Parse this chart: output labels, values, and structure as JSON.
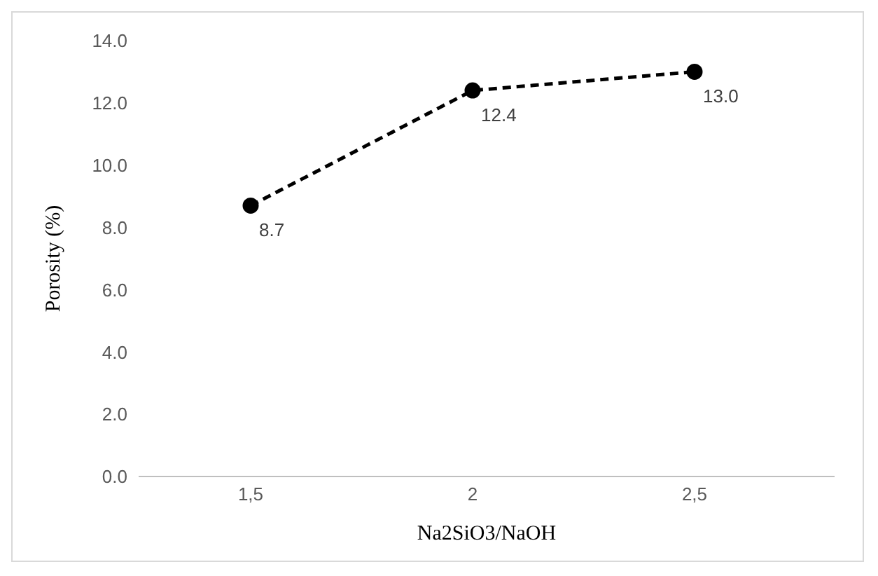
{
  "chart_data": {
    "type": "line",
    "xlabel": "Na2SiO3/NaOH",
    "ylabel": "Porosity (%)",
    "categories": [
      "1,5",
      "2",
      "2,5"
    ],
    "series": [
      {
        "color": "#000000",
        "values": [
          8.7,
          12.4,
          13.0
        ],
        "value_labels": [
          "8.7",
          "12.4",
          "13.0"
        ]
      }
    ],
    "ylim": [
      0,
      14
    ],
    "yticks": [
      {
        "value": 0,
        "label": "0.0"
      },
      {
        "value": 2,
        "label": "2.0"
      },
      {
        "value": 4,
        "label": "4.0"
      },
      {
        "value": 6,
        "label": "6.0"
      },
      {
        "value": 8,
        "label": "8.0"
      },
      {
        "value": 10,
        "label": "10.0"
      },
      {
        "value": 12,
        "label": "12.0"
      },
      {
        "value": 14,
        "label": "14.0"
      }
    ],
    "grid": false,
    "legend": false,
    "marker": "circle",
    "line_style": "dashed"
  }
}
